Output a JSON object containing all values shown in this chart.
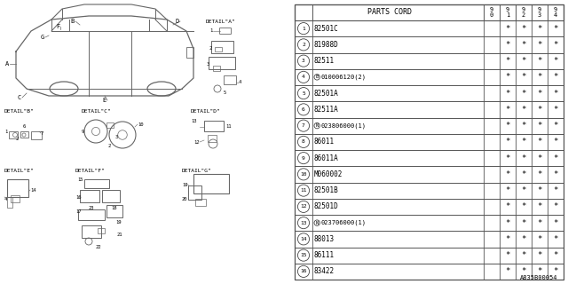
{
  "bg_color": "#ffffff",
  "footer": "A835B00054",
  "rows": [
    {
      "num": "1",
      "part": "82501C",
      "prefix": "",
      "cols": [
        "",
        "*",
        "*",
        "*",
        "*"
      ]
    },
    {
      "num": "2",
      "part": "81988D",
      "prefix": "",
      "cols": [
        "",
        "*",
        "*",
        "*",
        "*"
      ]
    },
    {
      "num": "3",
      "part": "82511",
      "prefix": "",
      "cols": [
        "",
        "*",
        "*",
        "*",
        "*"
      ]
    },
    {
      "num": "4",
      "part": "010006120(2)",
      "prefix": "B",
      "cols": [
        "",
        "*",
        "*",
        "*",
        "*"
      ]
    },
    {
      "num": "5",
      "part": "82501A",
      "prefix": "",
      "cols": [
        "",
        "*",
        "*",
        "*",
        "*"
      ]
    },
    {
      "num": "6",
      "part": "82511A",
      "prefix": "",
      "cols": [
        "",
        "*",
        "*",
        "*",
        "*"
      ]
    },
    {
      "num": "7",
      "part": "023806000(1)",
      "prefix": "N",
      "cols": [
        "",
        "*",
        "*",
        "*",
        "*"
      ]
    },
    {
      "num": "8",
      "part": "86011",
      "prefix": "",
      "cols": [
        "",
        "*",
        "*",
        "*",
        "*"
      ]
    },
    {
      "num": "9",
      "part": "86011A",
      "prefix": "",
      "cols": [
        "",
        "*",
        "*",
        "*",
        "*"
      ]
    },
    {
      "num": "10",
      "part": "M060002",
      "prefix": "",
      "cols": [
        "",
        "*",
        "*",
        "*",
        "*"
      ]
    },
    {
      "num": "11",
      "part": "82501B",
      "prefix": "",
      "cols": [
        "",
        "*",
        "*",
        "*",
        "*"
      ]
    },
    {
      "num": "12",
      "part": "82501D",
      "prefix": "",
      "cols": [
        "",
        "*",
        "*",
        "*",
        "*"
      ]
    },
    {
      "num": "13",
      "part": "023706000(1)",
      "prefix": "N",
      "cols": [
        "",
        "*",
        "*",
        "*",
        "*"
      ]
    },
    {
      "num": "14",
      "part": "88013",
      "prefix": "",
      "cols": [
        "",
        "*",
        "*",
        "*",
        "*"
      ]
    },
    {
      "num": "15",
      "part": "86111",
      "prefix": "",
      "cols": [
        "",
        "*",
        "*",
        "*",
        "*"
      ]
    },
    {
      "num": "16",
      "part": "83422",
      "prefix": "",
      "cols": [
        "",
        "*",
        "*",
        "*",
        "*"
      ]
    }
  ],
  "year_headers": [
    "9\n0",
    "9\n1",
    "9\n2",
    "9\n3",
    "9\n4"
  ],
  "lc": "#666666",
  "tc": "#000000"
}
